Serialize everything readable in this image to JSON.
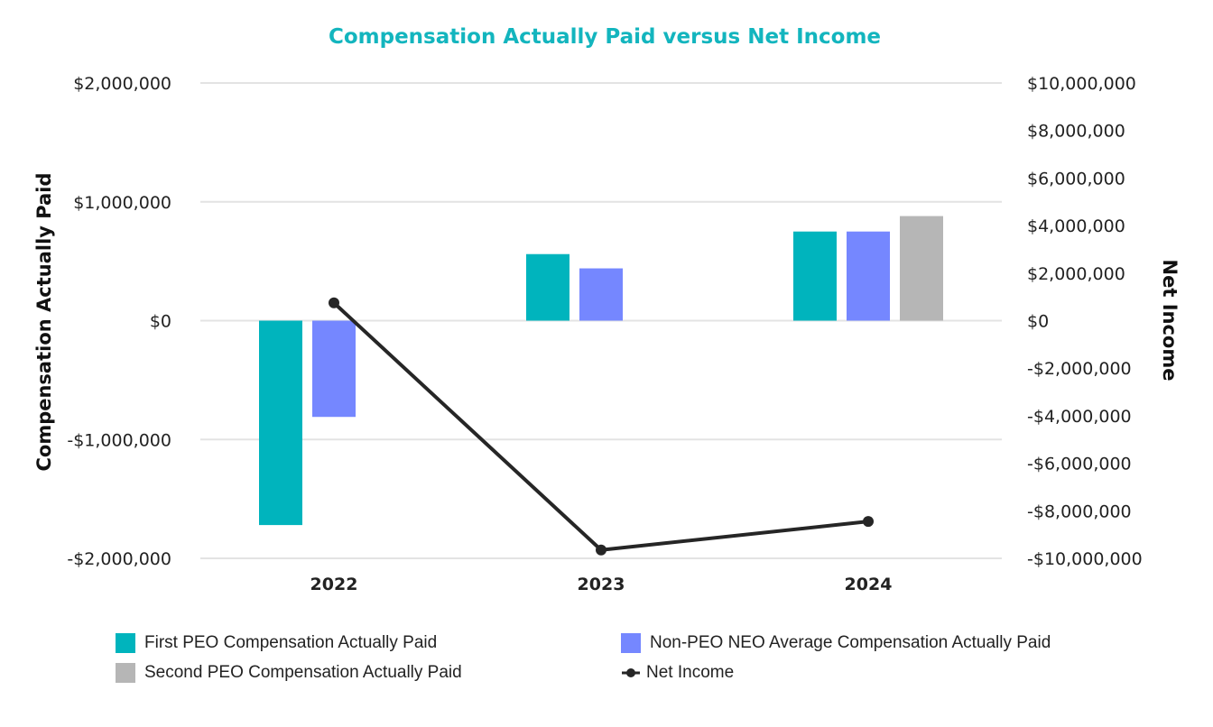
{
  "chart_data": {
    "type": "bar",
    "title": "Compensation Actually Paid versus Net Income",
    "title_color": "#13b5be",
    "categories": [
      "2022",
      "2023",
      "2024"
    ],
    "ylabel": "Compensation Actually Paid",
    "y2label": "Net Income",
    "ylim": [
      -2000000,
      2000000
    ],
    "y2lim": [
      -10000000,
      10000000
    ],
    "yticks": [
      "$2,000,000",
      "$1,000,000",
      "$0",
      "-$1,000,000",
      "-$2,000,000"
    ],
    "y2ticks": [
      "$10,000,000",
      "$8,000,000",
      "$6,000,000",
      "$4,000,000",
      "$2,000,000",
      "$0",
      "-$2,000,000",
      "-$4,000,000",
      "-$6,000,000",
      "-$8,000,000",
      "-$10,000,000"
    ],
    "series": [
      {
        "name": "First PEO Compensation Actually Paid",
        "type": "bar",
        "axis": "left",
        "color": "#00b4bd",
        "values": [
          -1720000,
          560000,
          750000
        ]
      },
      {
        "name": "Non-PEO NEO Average Compensation Actually Paid",
        "type": "bar",
        "axis": "left",
        "color": "#7587ff",
        "values": [
          -810000,
          440000,
          750000
        ]
      },
      {
        "name": "Second PEO Compensation Actually Paid",
        "type": "bar",
        "axis": "left",
        "color": "#b6b6b6",
        "values": [
          null,
          null,
          880000
        ]
      },
      {
        "name": "Net Income",
        "type": "line",
        "axis": "right",
        "color": "#262626",
        "values": [
          750000,
          -9650000,
          -8450000
        ]
      }
    ]
  }
}
